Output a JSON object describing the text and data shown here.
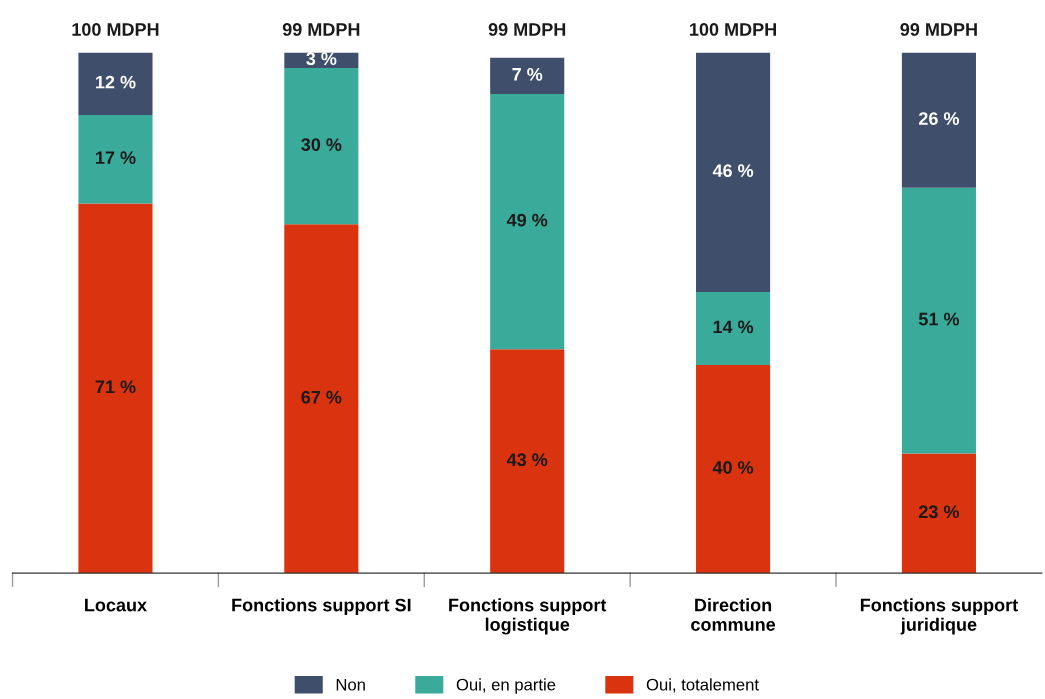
{
  "chart_data": {
    "type": "bar",
    "stacked": true,
    "legend": "bottom",
    "categories": [
      "Locaux",
      "Fonctions support SI",
      "Fonctions support\nlogistique",
      "Direction\ncommune",
      "Fonctions support\njuridique"
    ],
    "series": [
      {
        "name": "Oui, totalement",
        "color": "#d9340f",
        "values": [
          71,
          67,
          43,
          40,
          23
        ],
        "value_labels": [
          "71 %",
          "67 %",
          "43 %",
          "40 %",
          "23 %"
        ]
      },
      {
        "name": "Oui, en partie",
        "color": "#3aab9a",
        "values": [
          17,
          30,
          49,
          14,
          51
        ],
        "value_labels": [
          "17 %",
          "30 %",
          "49 %",
          "14 %",
          "51 %"
        ]
      },
      {
        "name": "Non",
        "color": "#3f4f6b",
        "values": [
          12,
          3,
          7,
          46,
          26
        ],
        "value_labels": [
          "12 %",
          "3 %",
          "7 %",
          "46 %",
          "26 %"
        ]
      }
    ],
    "annotations": [
      "100 MDPH",
      "99 MDPH",
      "99 MDPH",
      "100 MDPH",
      "99 MDPH"
    ]
  }
}
